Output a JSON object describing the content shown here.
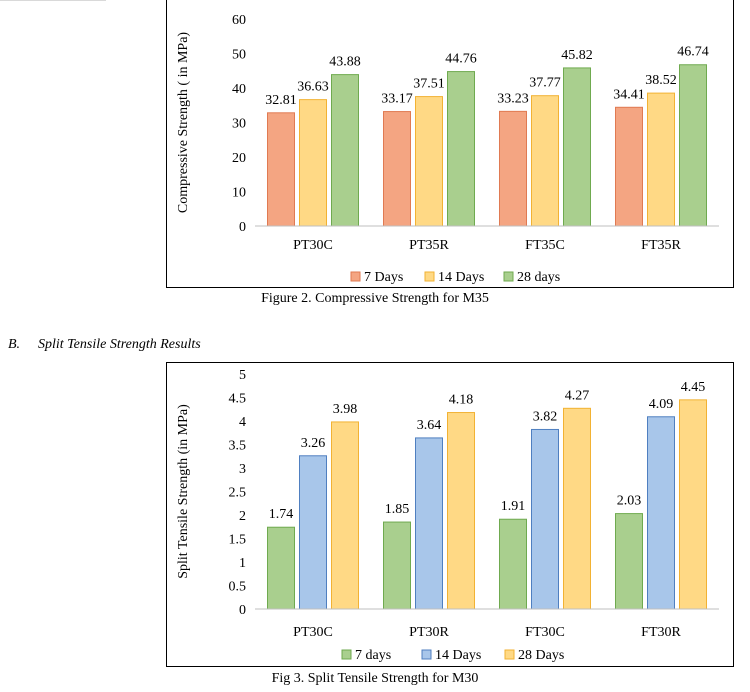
{
  "section": {
    "label": "B.",
    "title": "Split Tensile Strength Results"
  },
  "figure1": {
    "caption": "Figure 2. Compressive Strength for M35"
  },
  "figure2": {
    "caption": "Fig 3. Split Tensile Strength for M30"
  },
  "colors": {
    "orange": "#f4a582",
    "orange_stroke": "#e07a52",
    "yellow": "#ffd985",
    "yellow_stroke": "#f2b233",
    "green": "#a9cf8e",
    "green_stroke": "#6faa4f",
    "blue": "#a8c6ea",
    "blue_stroke": "#4f7fc0"
  },
  "chart_data": [
    {
      "type": "bar",
      "title": "",
      "xlabel": "",
      "ylabel": "Compressive Strength ( in MPa)",
      "categories": [
        "PT30C",
        "PT35R",
        "FT35C",
        "FT35R"
      ],
      "ylim": [
        0,
        60
      ],
      "yticks": [
        0,
        10,
        20,
        30,
        40,
        50,
        60
      ],
      "legend_position": "bottom",
      "grid": false,
      "series": [
        {
          "name": "7 Days",
          "values": [
            32.81,
            33.17,
            33.23,
            34.41
          ],
          "color": "orange"
        },
        {
          "name": "14 Days",
          "values": [
            36.63,
            37.51,
            37.77,
            38.52
          ],
          "color": "yellow"
        },
        {
          "name": "28 days",
          "values": [
            43.88,
            44.76,
            45.82,
            46.74
          ],
          "color": "green"
        }
      ],
      "data_labels": [
        [
          "32.81",
          "33.17",
          "33.23",
          "34.41"
        ],
        [
          "36.63",
          "37.51",
          "37.77",
          "38.52"
        ],
        [
          "43.88",
          "44.76",
          "45.82",
          "46.74"
        ]
      ]
    },
    {
      "type": "bar",
      "title": "",
      "xlabel": "",
      "ylabel": "Split Tensile Strength (in MPa)",
      "categories": [
        "PT30C",
        "PT30R",
        "FT30C",
        "FT30R"
      ],
      "ylim": [
        0,
        5
      ],
      "yticks": [
        0,
        0.5,
        1,
        1.5,
        2,
        2.5,
        3,
        3.5,
        4,
        4.5,
        5
      ],
      "legend_position": "bottom",
      "grid": false,
      "series": [
        {
          "name": "7 days",
          "values": [
            1.74,
            1.85,
            1.91,
            2.03
          ],
          "color": "green"
        },
        {
          "name": "14 Days",
          "values": [
            3.26,
            3.64,
            3.82,
            4.09
          ],
          "color": "blue"
        },
        {
          "name": "28 Days",
          "values": [
            3.98,
            4.18,
            4.27,
            4.45
          ],
          "color": "yellow"
        }
      ],
      "data_labels": [
        [
          "1.74",
          "1.85",
          "1.91",
          "2.03"
        ],
        [
          "3.26",
          "3.64",
          "3.82",
          "4.09"
        ],
        [
          "3.98",
          "4.18",
          "4.27",
          "4.45"
        ]
      ]
    }
  ]
}
